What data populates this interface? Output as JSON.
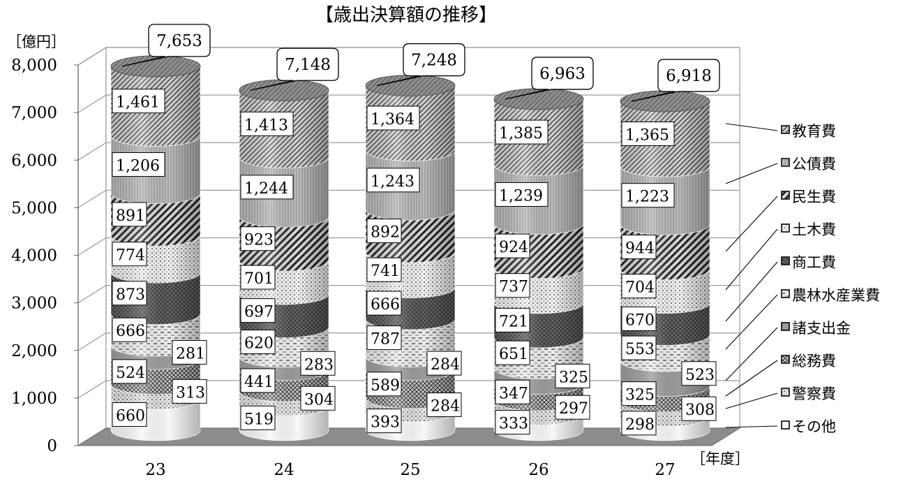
{
  "chart_data": {
    "type": "bar",
    "variant": "stacked-cylinder-3d",
    "title": "【歳出決算額の推移】",
    "ylabel": "［億円］",
    "xlabel": "［年度］",
    "ylim": [
      0,
      8000
    ],
    "yticks": [
      "0",
      "1,000",
      "2,000",
      "3,000",
      "4,000",
      "5,000",
      "6,000",
      "7,000",
      "8,000"
    ],
    "grid": true,
    "legend_position": "right",
    "categories": [
      "23",
      "24",
      "25",
      "26",
      "27"
    ],
    "totals": [
      7653,
      7148,
      7248,
      6963,
      6918
    ],
    "total_labels": [
      "7,653",
      "7,148",
      "7,248",
      "6,963",
      "6,918"
    ],
    "series": [
      {
        "name": "その他",
        "values": [
          660,
          519,
          393,
          333,
          298
        ],
        "labels": [
          "660",
          "519",
          "393",
          "333",
          "298"
        ],
        "color": "#f7f7f7",
        "pattern": "plain"
      },
      {
        "name": "警察費",
        "values": [
          313,
          304,
          284,
          297,
          308
        ],
        "labels": [
          "313",
          "304",
          "284",
          "297",
          "308"
        ],
        "color": "#e4e4e4",
        "pattern": "dots"
      },
      {
        "name": "総務費",
        "values": [
          524,
          441,
          589,
          347,
          325
        ],
        "labels": [
          "524",
          "441",
          "589",
          "347",
          "325"
        ],
        "color": "#c9c9c9",
        "pattern": "cross"
      },
      {
        "name": "諸支出金",
        "values": [
          281,
          283,
          284,
          325,
          523
        ],
        "labels": [
          "281",
          "283",
          "284",
          "325",
          "523"
        ],
        "color": "#9a9a9a",
        "pattern": "plain"
      },
      {
        "name": "農林水産業費",
        "values": [
          666,
          620,
          787,
          651,
          553
        ],
        "labels": [
          "666",
          "620",
          "787",
          "651",
          "553"
        ],
        "color": "#ededed",
        "pattern": "dash"
      },
      {
        "name": "商工費",
        "values": [
          873,
          697,
          666,
          721,
          670
        ],
        "labels": [
          "873",
          "697",
          "666",
          "721",
          "670"
        ],
        "color": "#6a6a6a",
        "pattern": "cross"
      },
      {
        "name": "土木費",
        "values": [
          774,
          701,
          741,
          737,
          704
        ],
        "labels": [
          "774",
          "701",
          "741",
          "737",
          "704"
        ],
        "color": "#f2f2f2",
        "pattern": "dots"
      },
      {
        "name": "民生費",
        "values": [
          891,
          923,
          892,
          924,
          944
        ],
        "labels": [
          "891",
          "923",
          "892",
          "924",
          "944"
        ],
        "color": "#d6d6d6",
        "pattern": "diag-bold"
      },
      {
        "name": "公債費",
        "values": [
          1206,
          1244,
          1243,
          1239,
          1223
        ],
        "labels": [
          "1,206",
          "1,244",
          "1,243",
          "1,239",
          "1,223"
        ],
        "color": "#bdbdbd",
        "pattern": "vlines"
      },
      {
        "name": "教育費",
        "values": [
          1461,
          1413,
          1364,
          1385,
          1365
        ],
        "labels": [
          "1,461",
          "1,413",
          "1,364",
          "1,385",
          "1,365"
        ],
        "color": "#cfcfcf",
        "pattern": "diag"
      }
    ],
    "legend": [
      "教育費",
      "公債費",
      "民生費",
      "土木費",
      "商工費",
      "農林水産業費",
      "諸支出金",
      "総務費",
      "警察費",
      "その他"
    ]
  }
}
